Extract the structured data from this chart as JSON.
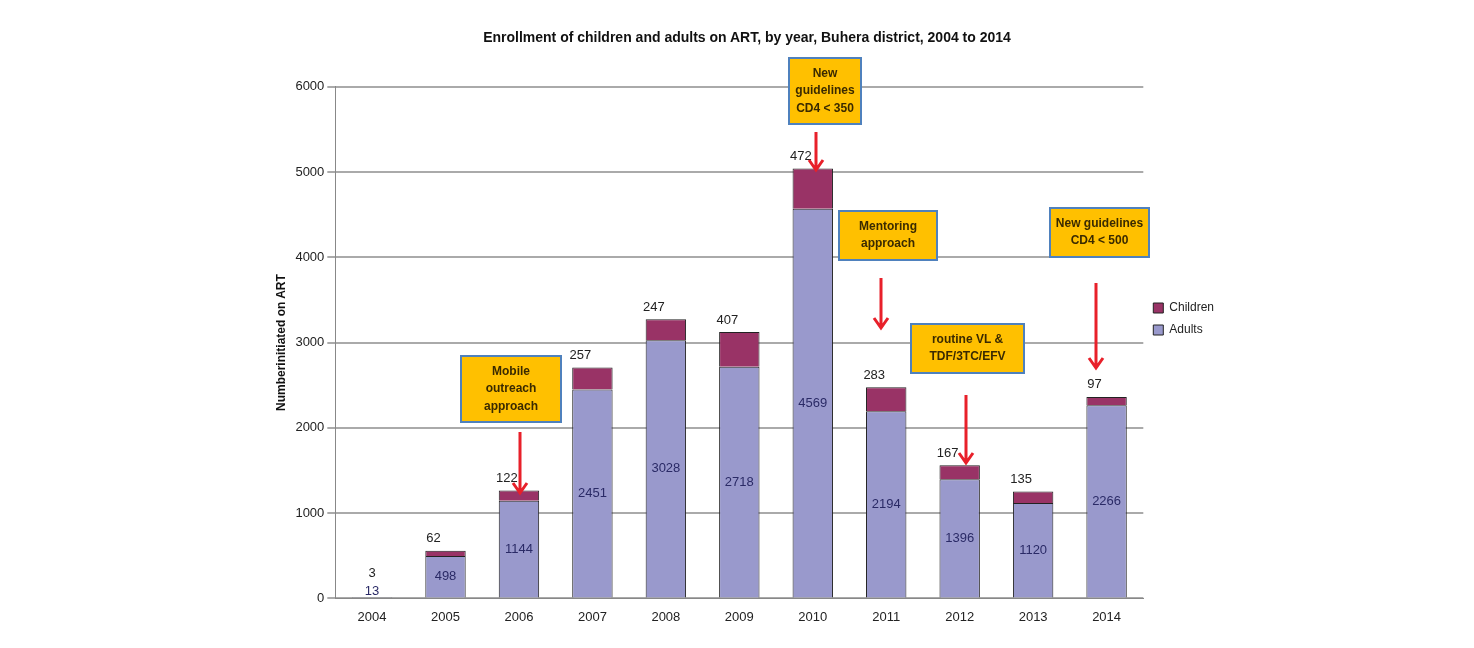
{
  "chart_data": {
    "type": "bar",
    "stacked": true,
    "title": "Enrollment of children and adults on ART, by year, Buhera district, 2004 to 2014",
    "ylabel": "Numberinitiated on ART",
    "categories": [
      "2004",
      "2005",
      "2006",
      "2007",
      "2008",
      "2009",
      "2010",
      "2011",
      "2012",
      "2013",
      "2014"
    ],
    "series": [
      {
        "name": "Adults",
        "color": "#9999cc",
        "values": [
          13,
          498,
          1144,
          2451,
          3028,
          2718,
          4569,
          2194,
          1396,
          1120,
          2266
        ]
      },
      {
        "name": "Children",
        "color": "#993366",
        "values": [
          3,
          62,
          122,
          257,
          247,
          407,
          472,
          283,
          167,
          135,
          97
        ]
      }
    ],
    "ylim": [
      0,
      6000
    ],
    "yticks": [
      0,
      1000,
      2000,
      3000,
      4000,
      5000,
      6000
    ],
    "grid": "y",
    "legend": "right",
    "data_labels": true,
    "annotations": [
      "Mobile outreach approach",
      "New guidelines CD4 < 350",
      "Mentoring approach",
      "routine VL & TDF/3TC/EFV",
      "New guidelines CD4 < 500"
    ]
  }
}
